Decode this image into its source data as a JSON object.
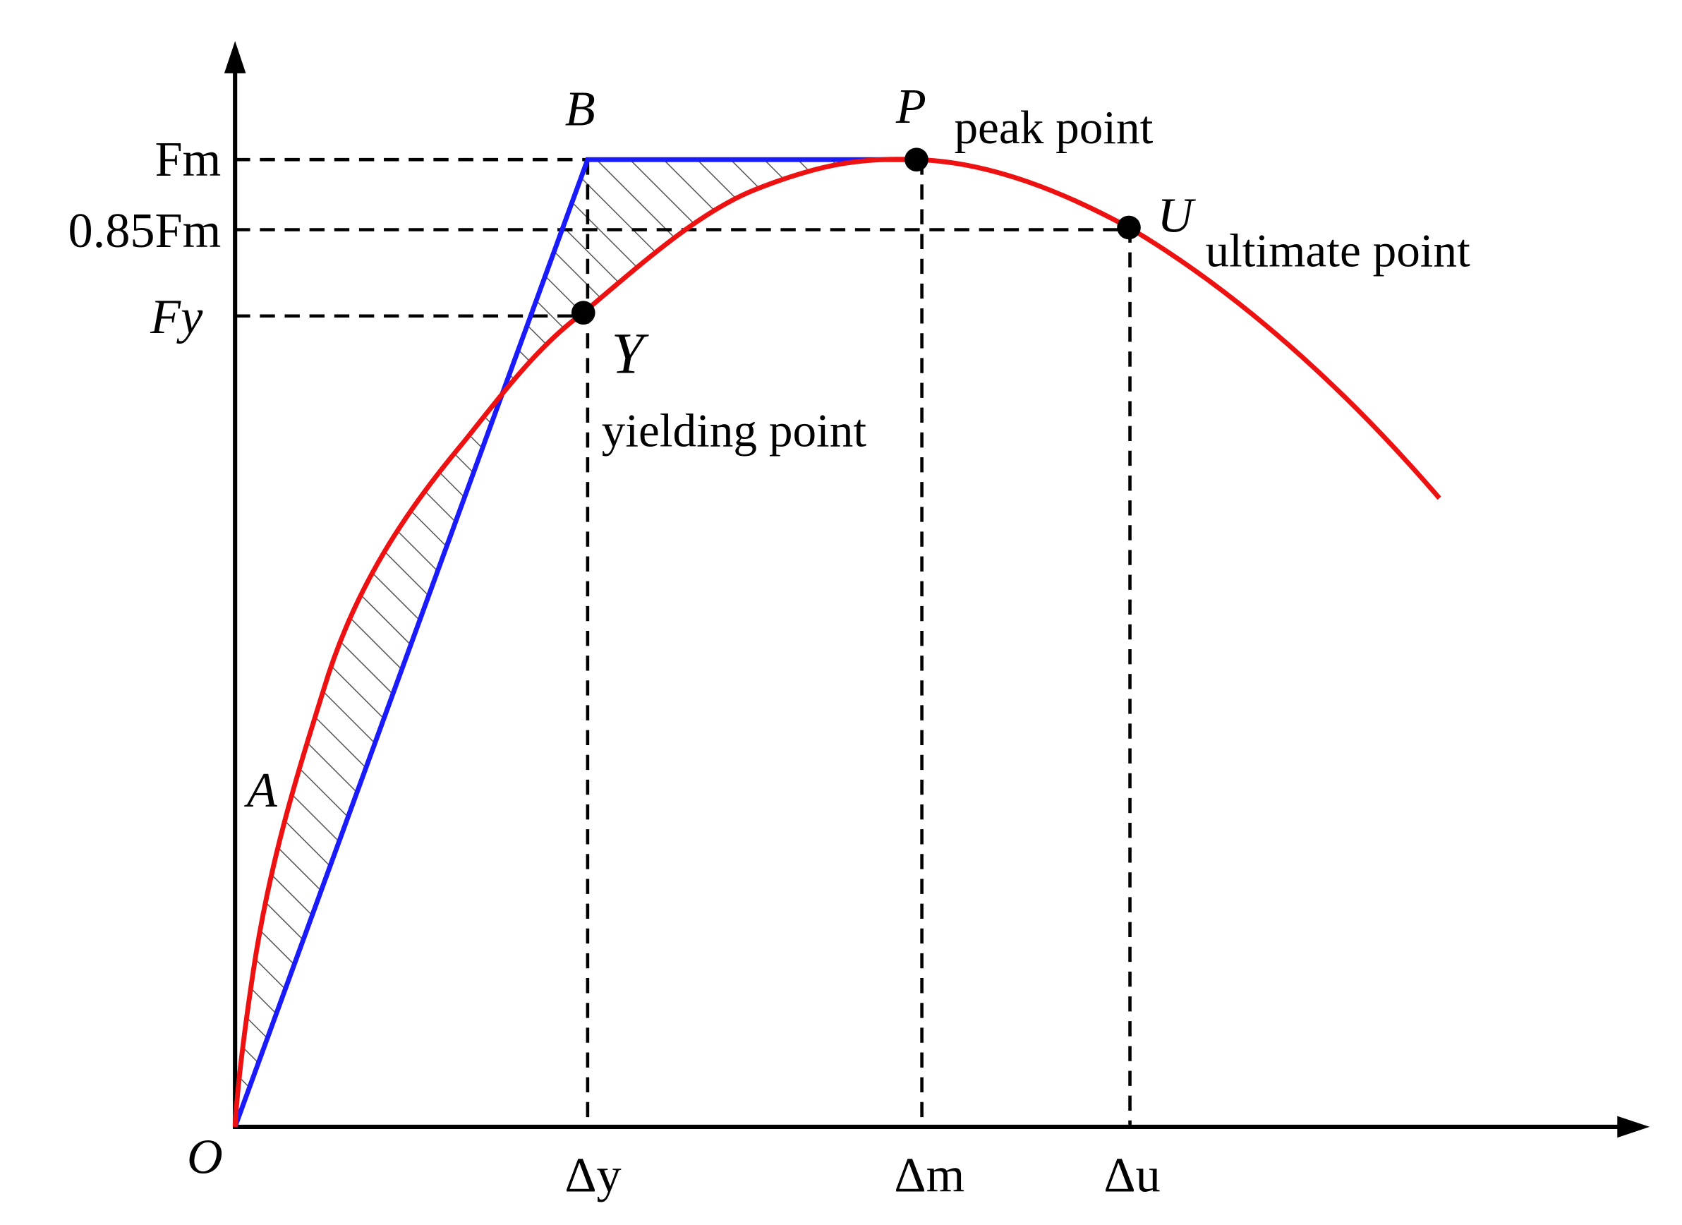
{
  "axis_labels": {
    "y": [
      "Fm",
      "0.85Fm",
      "Fy"
    ],
    "x": [
      "Δy",
      "Δm",
      "Δu"
    ],
    "origin": "O"
  },
  "points": [
    {
      "label": "A"
    },
    {
      "label": "B"
    },
    {
      "label": "P",
      "note": "peak point"
    },
    {
      "label": "Y",
      "note": "yielding point"
    },
    {
      "label": "U",
      "note": "ultimate point"
    }
  ]
}
